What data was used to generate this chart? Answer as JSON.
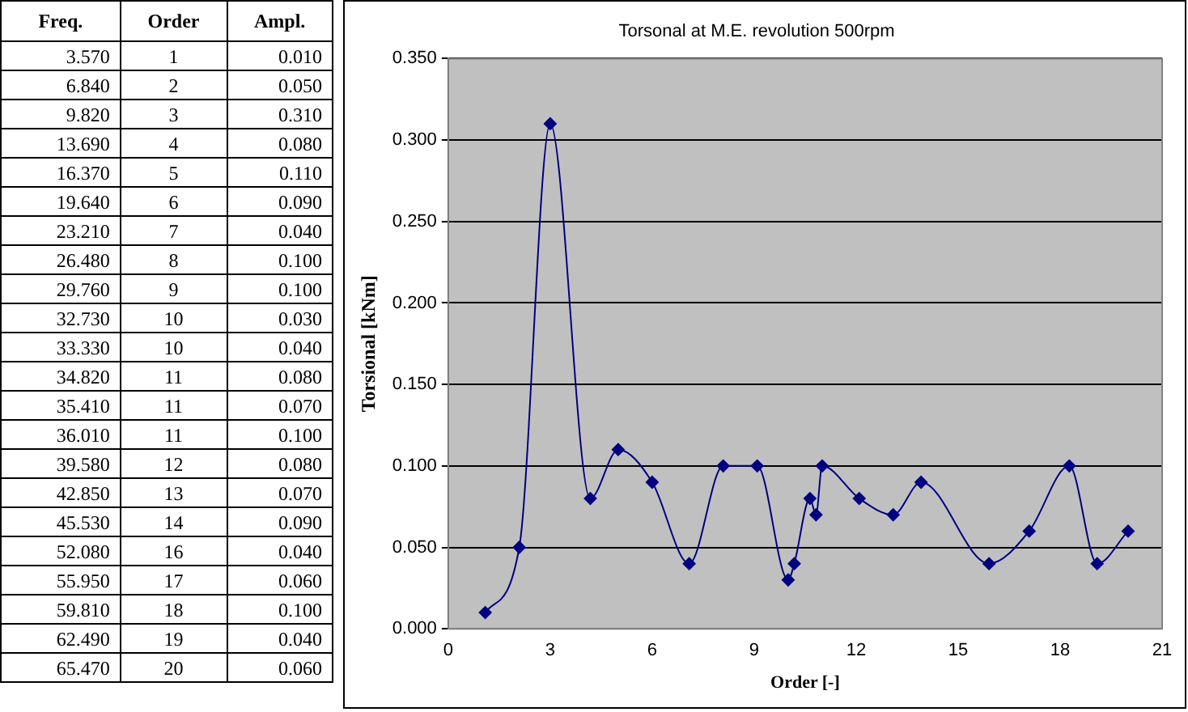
{
  "chart_data": [
    {
      "type": "other",
      "categories": [
        "Freq.",
        "Order",
        "Ampl."
      ],
      "annotations": [
        "3.570",
        "1",
        "0.010",
        "6.840",
        "2",
        "0.050",
        "9.820",
        "3",
        "0.310",
        "13.690",
        "4",
        "0.080",
        "16.370",
        "5",
        "0.110",
        "19.640",
        "6",
        "0.090",
        "23.210",
        "7",
        "0.040",
        "26.480",
        "8",
        "0.100",
        "29.760",
        "9",
        "0.100",
        "32.730",
        "10",
        "0.030",
        "33.330",
        "10",
        "0.040",
        "34.820",
        "11",
        "0.080",
        "35.410",
        "11",
        "0.070",
        "36.010",
        "11",
        "0.100",
        "39.580",
        "12",
        "0.080",
        "42.850",
        "13",
        "0.070",
        "45.530",
        "14",
        "0.090",
        "52.080",
        "16",
        "0.040",
        "55.950",
        "17",
        "0.060",
        "59.810",
        "18",
        "0.100",
        "62.490",
        "19",
        "0.040",
        "65.470",
        "20",
        "0.060"
      ]
    },
    {
      "type": "line",
      "title": "Torsonal at M.E. revolution 500rpm",
      "xlabel": "Order [-]",
      "ylabel": "Torsional [kNm]",
      "x": [
        1.09,
        2.09,
        3.0,
        4.18,
        5.0,
        6.0,
        7.09,
        8.09,
        9.09,
        10.0,
        10.18,
        10.64,
        10.82,
        11.0,
        12.09,
        13.09,
        13.91,
        15.91,
        17.09,
        18.27,
        19.09,
        20.0
      ],
      "series": [
        {
          "color": "#000080",
          "values": [
            0.01,
            0.05,
            0.31,
            0.08,
            0.11,
            0.09,
            0.04,
            0.1,
            0.1,
            0.03,
            0.04,
            0.08,
            0.07,
            0.1,
            0.08,
            0.07,
            0.09,
            0.04,
            0.06,
            0.1,
            0.04,
            0.06
          ]
        }
      ],
      "xlim": [
        0,
        21
      ],
      "xticks": [
        0,
        3,
        6,
        9,
        12,
        15,
        18,
        21
      ],
      "ylim": [
        0,
        0.35
      ],
      "yticks": [
        {
          "value": 0,
          "label": "0.000"
        },
        {
          "value": 0.05,
          "label": "0.050"
        },
        {
          "value": 0.1,
          "label": "0.100"
        },
        {
          "value": 0.15,
          "label": "0.150"
        },
        {
          "value": 0.2,
          "label": "0.200"
        },
        {
          "value": 0.25,
          "label": "0.250"
        },
        {
          "value": 0.3,
          "label": "0.300"
        },
        {
          "value": 0.35,
          "label": "0.350"
        }
      ],
      "grid": "y",
      "marker": "diamond",
      "line_style": "solid",
      "legend": false
    }
  ]
}
